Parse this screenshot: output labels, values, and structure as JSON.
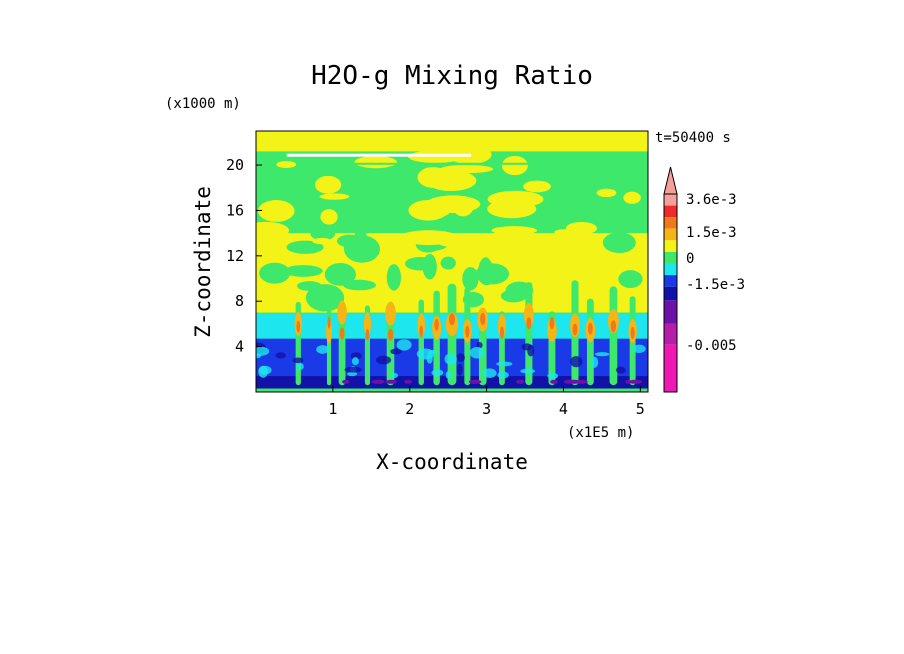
{
  "chart_data": {
    "type": "heatmap",
    "title": "H2O-g Mixing Ratio",
    "xlabel": "X-coordinate",
    "ylabel": "Z-coordinate",
    "x_unit": "(x1E5 m)",
    "y_unit": "(x1000 m)",
    "time_label": "t=50400 s",
    "xlim": [
      0,
      5.1
    ],
    "ylim": [
      0,
      23
    ],
    "x_ticks": [
      "1",
      "2",
      "3",
      "4",
      "5"
    ],
    "x_tick_values": [
      1,
      2,
      3,
      4,
      5
    ],
    "y_ticks": [
      "4",
      "8",
      "12",
      "16",
      "20"
    ],
    "y_tick_values": [
      4,
      8,
      12,
      16,
      20
    ],
    "colorbar": {
      "labels": [
        "3.6e-3",
        "1.5e-3",
        "0",
        "-1.5e-3",
        "-0.005"
      ],
      "colors_top_to_bottom": [
        "#f4a09a",
        "#ee2a2a",
        "#f07a1a",
        "#f5b515",
        "#f3f318",
        "#3ee86a",
        "#1ee6ee",
        "#1a3ae8",
        "#1212a8",
        "#6c12a8",
        "#b41ea8",
        "#f018b4"
      ]
    },
    "layer_colors": {
      "top": "#f3f318",
      "upper": "#3ee86a",
      "mid": "#f3f318",
      "cyan_band": "#1ee6ee",
      "blue_band": "#1a3ae8",
      "dark_band": "#1212a8",
      "purple": "#6c12a8"
    }
  }
}
